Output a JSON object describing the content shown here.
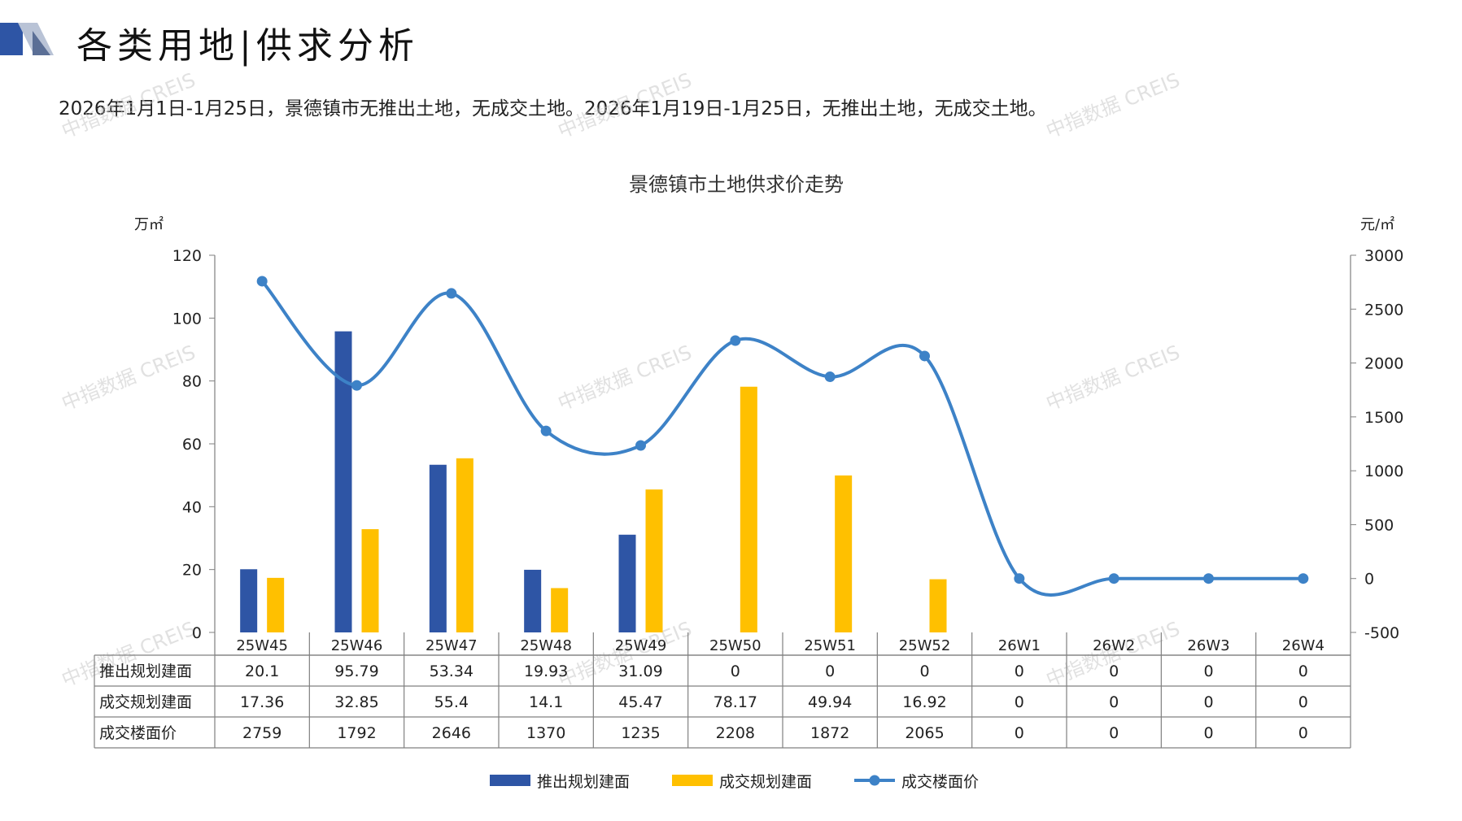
{
  "header": {
    "title": "各类用地|供求分析",
    "summary": "2026年1月1日-1月25日，景德镇市无推出土地，无成交土地。2026年1月19日-1月25日，无推出土地，无成交土地。"
  },
  "watermark": "中指数据 CREIS",
  "colors": {
    "supply": "#2E55A5",
    "transaction": "#FFC000",
    "price": "#3D82C7",
    "axis": "#808080"
  },
  "chart_data": {
    "type": "bar",
    "title": "景德镇市土地供求价走势",
    "ylabel_left": "万㎡",
    "ylabel_right": "元/㎡",
    "ylim_left": [
      0,
      120
    ],
    "yticks_left": [
      "0",
      "20",
      "40",
      "60",
      "80",
      "100",
      "120"
    ],
    "ylim_right": [
      -500,
      3000
    ],
    "yticks_right": [
      "-500",
      "0",
      "500",
      "1000",
      "1500",
      "2000",
      "2500",
      "3000"
    ],
    "categories": [
      "25W45",
      "25W46",
      "25W47",
      "25W48",
      "25W49",
      "25W50",
      "25W51",
      "25W52",
      "26W1",
      "26W2",
      "26W3",
      "26W4"
    ],
    "series": [
      {
        "name": "推出规划建面",
        "type": "bar",
        "axis": "left",
        "values": [
          20.1,
          95.79,
          53.34,
          19.93,
          31.09,
          0,
          0,
          0,
          0,
          0,
          0,
          0
        ],
        "labels": [
          "20.1",
          "95.79",
          "53.34",
          "19.93",
          "31.09",
          "0",
          "0",
          "0",
          "0",
          "0",
          "0",
          "0"
        ]
      },
      {
        "name": "成交规划建面",
        "type": "bar",
        "axis": "left",
        "values": [
          17.36,
          32.85,
          55.4,
          14.1,
          45.47,
          78.17,
          49.94,
          16.92,
          0,
          0,
          0,
          0
        ],
        "labels": [
          "17.36",
          "32.85",
          "55.4",
          "14.1",
          "45.47",
          "78.17",
          "49.94",
          "16.92",
          "0",
          "0",
          "0",
          "0"
        ]
      },
      {
        "name": "成交楼面价",
        "type": "line",
        "axis": "right",
        "values": [
          2759,
          1792,
          2646,
          1370,
          1235,
          2208,
          1872,
          2065,
          0,
          0,
          0,
          0
        ],
        "labels": [
          "2759",
          "1792",
          "2646",
          "1370",
          "1235",
          "2208",
          "1872",
          "2065",
          "0",
          "0",
          "0",
          "0"
        ]
      }
    ],
    "legend_position": "bottom",
    "data_table": true
  }
}
